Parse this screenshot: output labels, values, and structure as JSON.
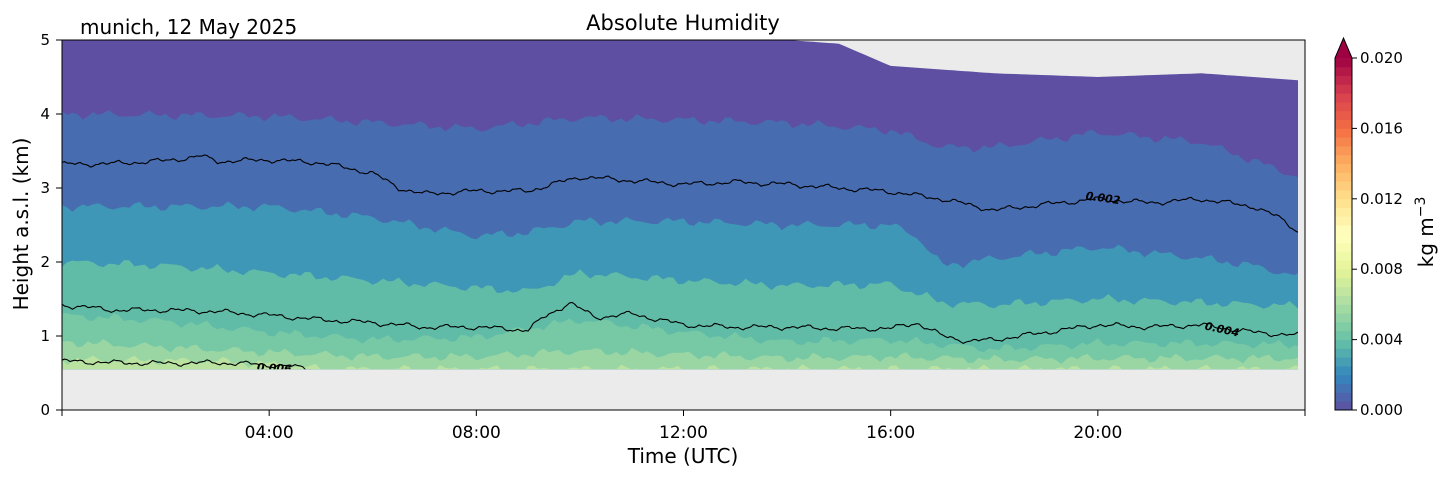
{
  "chart_data": {
    "type": "heatmap",
    "title": "Absolute Humidity",
    "subtitle": "munich, 12 May 2025",
    "xlabel": "Time (UTC)",
    "ylabel": "Height a.s.l. (km)",
    "xlim": [
      0,
      24
    ],
    "ylim": [
      0,
      5
    ],
    "x_ticks": [
      {
        "hour": 4,
        "label": "04:00"
      },
      {
        "hour": 8,
        "label": "08:00"
      },
      {
        "hour": 12,
        "label": "12:00"
      },
      {
        "hour": 16,
        "label": "16:00"
      },
      {
        "hour": 20,
        "label": "20:00"
      }
    ],
    "y_ticks": [
      0,
      1,
      2,
      3,
      4,
      5
    ],
    "y_tick_labels": [
      "0",
      "1",
      "2",
      "3",
      "4",
      "5"
    ],
    "data_lower_limit_km": 0.55,
    "colorbar": {
      "label": "kg m",
      "label_exponent": "−3",
      "range": [
        0.0,
        0.02
      ],
      "ticks": [
        0.0,
        0.004,
        0.008,
        0.012,
        0.016,
        0.02
      ],
      "tick_labels": [
        "0.000",
        "0.004",
        "0.008",
        "0.012",
        "0.016",
        "0.020"
      ],
      "extend": "max",
      "colormap": "Spectral_r"
    },
    "contours": [
      {
        "level": 0.002,
        "label": "0.002",
        "label_at_hour": 20.1,
        "hours": [
          0,
          1,
          2,
          2.7,
          3,
          4,
          5,
          6,
          6.5,
          7,
          8,
          9,
          10,
          11,
          12,
          13,
          14,
          15,
          16,
          17,
          18,
          19,
          20,
          21,
          22,
          23,
          23.5,
          24
        ],
        "heights": [
          3.32,
          3.33,
          3.37,
          3.43,
          3.36,
          3.38,
          3.34,
          3.2,
          3.0,
          2.92,
          2.96,
          2.96,
          3.15,
          3.1,
          3.05,
          3.08,
          3.05,
          3.0,
          2.95,
          2.85,
          2.7,
          2.78,
          2.85,
          2.8,
          2.85,
          2.75,
          2.6,
          2.35
        ]
      },
      {
        "level": 0.004,
        "label": "0.004",
        "label_at_hour": 22.4,
        "hours": [
          0,
          1,
          2,
          3,
          4,
          5,
          6,
          7,
          8,
          9,
          9.3,
          9.8,
          10.3,
          11,
          12,
          13,
          14,
          15,
          16,
          16.5,
          17,
          17.5,
          18,
          19,
          20,
          21,
          22,
          23,
          24
        ],
        "heights": [
          1.42,
          1.35,
          1.35,
          1.33,
          1.28,
          1.22,
          1.18,
          1.12,
          1.12,
          1.08,
          1.25,
          1.45,
          1.25,
          1.3,
          1.15,
          1.12,
          1.12,
          1.1,
          1.1,
          1.18,
          1.0,
          0.93,
          0.95,
          1.05,
          1.15,
          1.12,
          1.15,
          1.05,
          1.0
        ]
      },
      {
        "level": 0.006,
        "label": "0.006",
        "label_at_hour": 4.1,
        "hours": [
          0,
          1,
          2,
          3,
          3.7,
          4.2,
          4.8
        ],
        "heights": [
          0.66,
          0.64,
          0.63,
          0.64,
          0.62,
          0.6,
          0.56
        ]
      }
    ],
    "filled_bands": [
      {
        "value": 0.0,
        "hours": [
          0,
          6,
          10,
          12,
          14,
          15,
          16,
          18,
          20,
          22,
          24
        ],
        "top_heights": [
          5,
          5,
          5,
          5,
          5,
          4.95,
          4.65,
          4.55,
          4.5,
          4.55,
          4.45
        ]
      },
      {
        "value": 0.001,
        "hours": [
          0,
          4,
          8,
          10,
          12,
          14,
          16,
          17,
          18,
          20,
          22,
          24
        ],
        "top_heights": [
          4.0,
          3.97,
          3.8,
          3.95,
          3.92,
          3.88,
          3.78,
          3.55,
          3.55,
          3.75,
          3.62,
          3.12
        ]
      },
      {
        "value": 0.0025,
        "hours": [
          0,
          4,
          6,
          8,
          9,
          10,
          12,
          14,
          16,
          16.5,
          17,
          18,
          20,
          22,
          23,
          24
        ],
        "top_heights": [
          2.75,
          2.75,
          2.6,
          2.35,
          2.4,
          2.55,
          2.55,
          2.5,
          2.5,
          2.35,
          1.95,
          2.05,
          2.2,
          2.05,
          1.95,
          1.78
        ]
      },
      {
        "value": 0.0038,
        "hours": [
          0,
          2,
          4,
          6,
          8,
          9,
          10,
          12,
          14,
          16,
          17,
          18,
          20,
          22,
          24
        ],
        "top_heights": [
          2.0,
          1.95,
          1.85,
          1.75,
          1.65,
          1.6,
          1.85,
          1.75,
          1.68,
          1.7,
          1.45,
          1.42,
          1.5,
          1.45,
          1.4
        ]
      },
      {
        "value": 0.0045,
        "hours": [
          0,
          2,
          4,
          6,
          8,
          10,
          12,
          14,
          16,
          18,
          20,
          22,
          24
        ],
        "top_heights": [
          1.28,
          1.2,
          1.05,
          0.95,
          0.98,
          1.22,
          1.05,
          0.92,
          0.95,
          0.82,
          0.9,
          0.9,
          0.88
        ]
      },
      {
        "value": 0.0055,
        "hours": [
          0,
          2,
          4,
          6,
          8,
          10,
          12,
          14,
          16,
          18,
          20,
          22,
          24
        ],
        "top_heights": [
          0.92,
          0.85,
          0.78,
          0.72,
          0.72,
          0.8,
          0.75,
          0.7,
          0.72,
          0.68,
          0.7,
          0.7,
          0.7
        ]
      },
      {
        "value": 0.0065,
        "hours": [
          0,
          3,
          4.5,
          5,
          24
        ],
        "top_heights": [
          0.68,
          0.66,
          0.6,
          0.55,
          0.55
        ]
      }
    ],
    "no_data_color": "#ebebeb"
  }
}
